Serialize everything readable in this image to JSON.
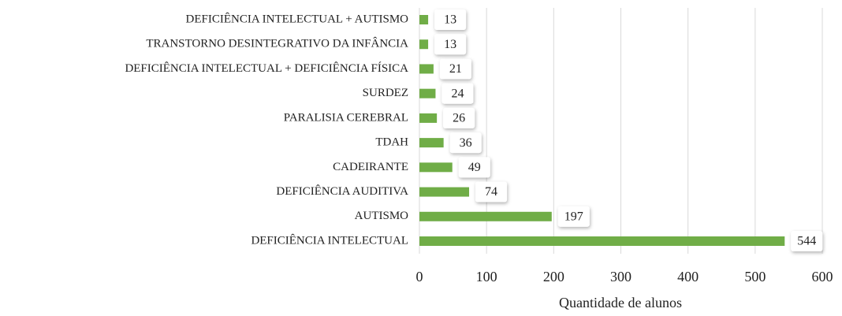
{
  "chart_data": {
    "type": "hbar",
    "categories": [
      "DEFICIÊNCIA INTELECTUAL + AUTISMO",
      "TRANSTORNO DESINTEGRATIVO DA INFÂNCIA",
      "DEFICIÊNCIA INTELECTUAL + DEFICIÊNCIA FÍSICA",
      "SURDEZ",
      "PARALISIA CEREBRAL",
      "TDAH",
      "CADEIRANTE",
      "DEFICIÊNCIA AUDITIVA",
      "AUTISMO",
      "DEFICIÊNCIA INTELECTUAL"
    ],
    "values": [
      13,
      13,
      21,
      24,
      26,
      36,
      49,
      74,
      197,
      544
    ],
    "color": "#70ad47",
    "xlabel": "Quantidade de alunos",
    "xlim": [
      0,
      600
    ],
    "xticks": [
      0,
      100,
      200,
      300,
      400,
      500,
      600
    ],
    "grid": true
  }
}
